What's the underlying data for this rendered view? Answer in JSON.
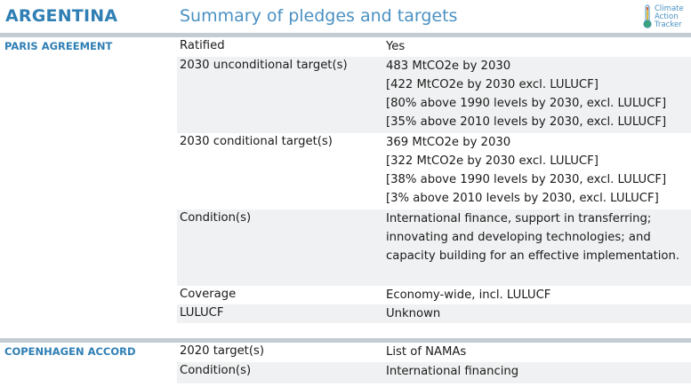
{
  "header": {
    "country": "ARGENTINA",
    "summary": "Summary of pledges and targets",
    "logo_lines": [
      "Climate",
      "Action",
      "Tracker"
    ]
  },
  "colors": {
    "accent": "#2f7fb5",
    "divider": "#c3ccd3",
    "row_shade": "#f0f1f2"
  },
  "paris": {
    "title": "PARIS AGREEMENT",
    "rows": [
      {
        "label": "Ratified",
        "values": [
          "Yes"
        ]
      },
      {
        "label": "2030 unconditional target(s)",
        "values": [
          "483 MtCO2e by 2030",
          "[422 MtCO2e by 2030 excl. LULUCF]",
          "[80% above 1990 levels by 2030, excl. LULUCF]",
          "[35% above 2010 levels by 2030, excl. LULUCF]"
        ]
      },
      {
        "label": "2030 conditional target(s)",
        "values": [
          "369 MtCO2e by 2030",
          "[322 MtCO2e by 2030 excl. LULUCF]",
          "[38% above 1990 levels by 2030, excl. LULUCF]",
          "[3% above 2010 levels by 2030, excl. LULUCF]"
        ]
      },
      {
        "label": "Condition(s)",
        "values": [
          "International finance, support in transferring;",
          "innovating and developing technologies; and",
          "capacity building for an effective implementation."
        ]
      },
      {
        "label": "Coverage",
        "values": [
          "Economy-wide, incl. LULUCF"
        ]
      },
      {
        "label": "LULUCF",
        "values": [
          "Unknown"
        ]
      }
    ]
  },
  "copenhagen": {
    "title": "COPENHAGEN ACCORD",
    "rows": [
      {
        "label": "2020 target(s)",
        "values": [
          "List of NAMAs"
        ]
      },
      {
        "label": "Condition(s)",
        "values": [
          "International financing"
        ]
      }
    ]
  }
}
